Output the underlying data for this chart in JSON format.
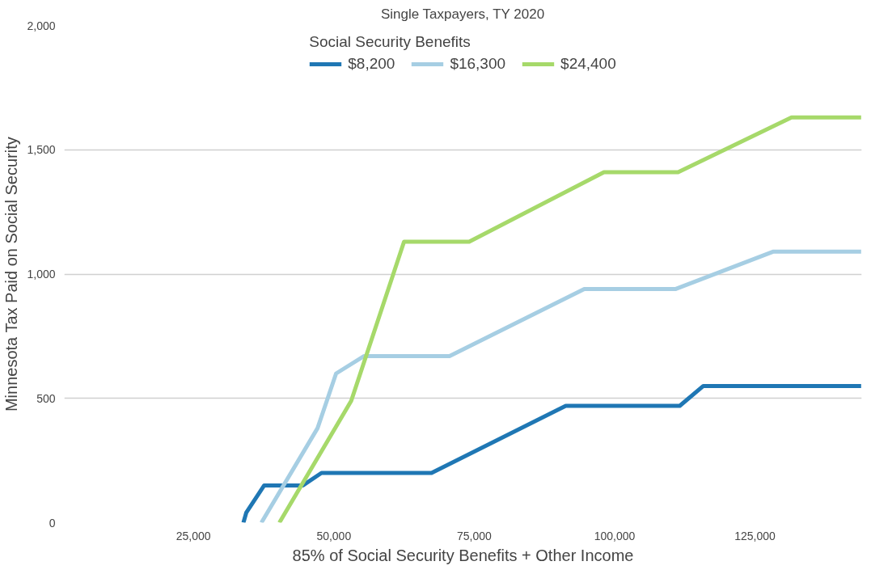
{
  "chart_data": {
    "type": "line",
    "title": "Single Taxpayers, TY 2020",
    "xlabel": "85% of Social Security Benefits + Other Income",
    "ylabel": "Minnesota Tax Paid on Social Security",
    "legend_title": "Social Security Benefits",
    "legend": "top",
    "grid": "y",
    "line_style": "solid",
    "marker": "none",
    "xlim": [
      2000,
      144000
    ],
    "xticks": [
      {
        "value": 25000,
        "label": "25,000"
      },
      {
        "value": 50000,
        "label": "50,000"
      },
      {
        "value": 75000,
        "label": "75,000"
      },
      {
        "value": 100000,
        "label": "100,000"
      },
      {
        "value": 125000,
        "label": "125,000"
      }
    ],
    "ylim": [
      0,
      2000
    ],
    "yticks": [
      {
        "value": 0,
        "label": "0"
      },
      {
        "value": 500,
        "label": "500"
      },
      {
        "value": 1000,
        "label": "1,000"
      },
      {
        "value": 1500,
        "label": "1,500"
      },
      {
        "value": 2000,
        "label": "2,000"
      }
    ],
    "series": [
      {
        "name": "$8,200",
        "color": "#1f77b4",
        "x": [
          33900,
          34400,
          37600,
          44500,
          47800,
          67400,
          91300,
          111600,
          115800,
          143900
        ],
        "values": [
          0,
          40,
          150,
          150,
          200,
          200,
          470,
          470,
          550,
          550
        ]
      },
      {
        "name": "$16,300",
        "color": "#a6cee3",
        "x": [
          37100,
          47100,
          50400,
          55400,
          70600,
          94600,
          110900,
          128200,
          143900
        ],
        "values": [
          0,
          380,
          600,
          670,
          670,
          940,
          940,
          1090,
          1090
        ]
      },
      {
        "name": "$24,400",
        "color": "#a6d96a",
        "x": [
          40300,
          53100,
          62500,
          74100,
          98100,
          111300,
          131500,
          143900
        ],
        "values": [
          0,
          490,
          1130,
          1130,
          1410,
          1410,
          1630,
          1630
        ]
      }
    ]
  }
}
